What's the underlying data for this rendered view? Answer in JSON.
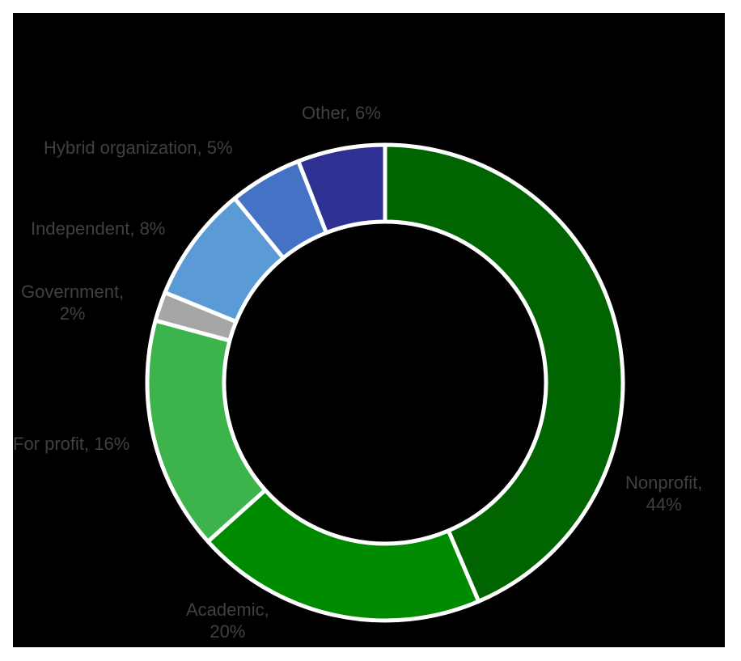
{
  "chart_data": {
    "type": "pie",
    "subtype": "donut",
    "title": "",
    "categories": [
      "Nonprofit",
      "Academic",
      "For profit",
      "Government",
      "Independent",
      "Hybrid organization",
      "Other"
    ],
    "values": [
      44,
      20,
      16,
      2,
      8,
      5,
      6
    ],
    "unit": "%",
    "colors": [
      "#006400",
      "#008A00",
      "#3CB44B",
      "#A6A6A6",
      "#5B9BD5",
      "#4472C4",
      "#2E3192"
    ],
    "start_angle_deg": 0,
    "direction": "clockwise",
    "legend": "none",
    "data_labels": [
      {
        "text_line1": "Nonprofit,",
        "text_line2": "44%"
      },
      {
        "text_line1": "Academic,",
        "text_line2": "20%"
      },
      {
        "text_line1": "For profit, 16%"
      },
      {
        "text_line1": "Government,",
        "text_line2": "2%"
      },
      {
        "text_line1": "Independent, 8%"
      },
      {
        "text_line1": "Hybrid organization, 5%"
      },
      {
        "text_line1": "Other, 6%"
      }
    ]
  },
  "style": {
    "background": "#000000",
    "label_color": "#404040",
    "separator_color": "#FFFFFF"
  }
}
